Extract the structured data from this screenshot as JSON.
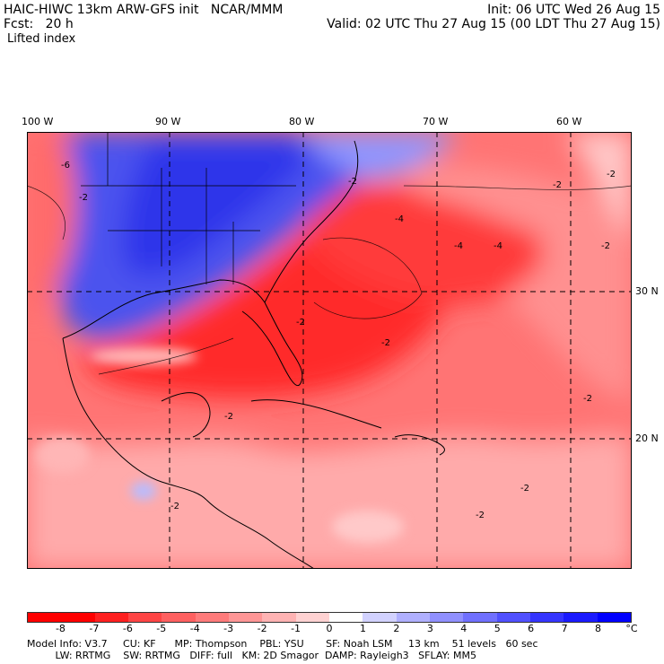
{
  "header": {
    "title_left": "HAIC-HIWC 13km ARW-GFS init   NCAR/MMM",
    "init": "Init: 06 UTC Wed 26 Aug 15",
    "fcst": "Fcst:   20 h",
    "valid": "Valid: 02 UTC Thu 27 Aug 15 (00 LDT Thu 27 Aug 15)",
    "field": "Lifted index"
  },
  "map": {
    "lon_labels": [
      "100 W",
      "90 W",
      "80 W",
      "70 W",
      "60 W"
    ],
    "lat_labels": [
      "30 N",
      "20 N"
    ],
    "contour_labels": [
      "-6",
      "-2",
      "-2",
      "-2",
      "-4",
      "-2",
      "-2",
      "-2",
      "-4",
      "-4",
      "-2",
      "-2",
      "-2",
      "-2",
      "-2",
      "-2"
    ]
  },
  "colorbar": {
    "ticks": [
      "-8",
      "-7",
      "-6",
      "-5",
      "-4",
      "-3",
      "-2",
      "-1",
      "0",
      "1",
      "2",
      "3",
      "4",
      "5",
      "6",
      "7",
      "8"
    ],
    "unit": "°C",
    "colors": [
      "#ff0000",
      "#ff2020",
      "#ff4545",
      "#ff6060",
      "#ff7b7b",
      "#ff9696",
      "#ffb3b3",
      "#ffd2d2",
      "#ffffff",
      "#d2d2ff",
      "#b0b0ff",
      "#9090ff",
      "#7070ff",
      "#5050ff",
      "#3535ff",
      "#1a1aff",
      "#0000ff"
    ]
  },
  "model_info": {
    "line1": "Model Info: V3.7     CU: KF      MP: Thompson    PBL: YSU       SF: Noah LSM     13 km    51 levels   60 sec",
    "line2": "         LW: RRTMG    SW: RRTMG   DIFF: full   KM: 2D Smagor  DAMP: Rayleigh3   SFLAY: MM5"
  }
}
